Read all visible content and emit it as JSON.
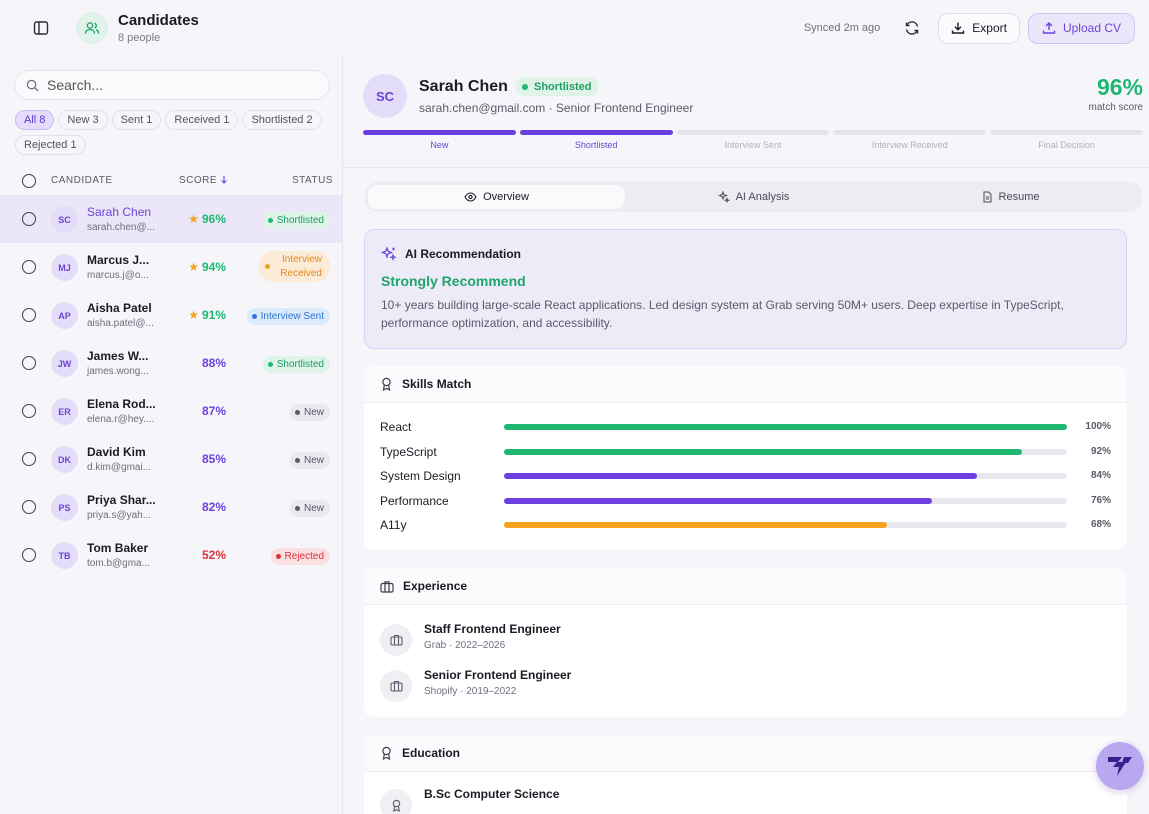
{
  "header": {
    "title": "Candidates",
    "subtitle": "8 people",
    "synced": "Synced 2m ago",
    "export_label": "Export",
    "upload_label": "Upload CV"
  },
  "search": {
    "placeholder": "Search..."
  },
  "filters": [
    {
      "label": "All 8",
      "active": true
    },
    {
      "label": "New 3",
      "active": false
    },
    {
      "label": "Sent 1",
      "active": false
    },
    {
      "label": "Received 1",
      "active": false
    },
    {
      "label": "Shortlisted 2",
      "active": false
    },
    {
      "label": "Rejected 1",
      "active": false
    }
  ],
  "list_headers": {
    "candidate": "CANDIDATE",
    "score": "SCORE",
    "status": "STATUS"
  },
  "candidates": [
    {
      "initials": "SC",
      "name": "Sarah Chen",
      "email": "sarah.chen@...",
      "score": "96%",
      "score_color": "#1fb872",
      "star": true,
      "status": "Shortlisted",
      "status_key": "shortlisted",
      "selected": true
    },
    {
      "initials": "MJ",
      "name": "Marcus J...",
      "email": "marcus.j@o...",
      "score": "94%",
      "score_color": "#1fb872",
      "star": true,
      "status": "Interview Received",
      "status_key": "interview-received",
      "selected": false
    },
    {
      "initials": "AP",
      "name": "Aisha Patel",
      "email": "aisha.patel@...",
      "score": "91%",
      "score_color": "#1fb872",
      "star": true,
      "status": "Interview Sent",
      "status_key": "interview-sent",
      "selected": false
    },
    {
      "initials": "JW",
      "name": "James W...",
      "email": "james.wong...",
      "score": "88%",
      "score_color": "#6b3fe0",
      "star": false,
      "status": "Shortlisted",
      "status_key": "shortlisted",
      "selected": false
    },
    {
      "initials": "ER",
      "name": "Elena Rod...",
      "email": "elena.r@hey....",
      "score": "87%",
      "score_color": "#6b3fe0",
      "star": false,
      "status": "New",
      "status_key": "new",
      "selected": false
    },
    {
      "initials": "DK",
      "name": "David Kim",
      "email": "d.kim@gmai...",
      "score": "85%",
      "score_color": "#6b3fe0",
      "star": false,
      "status": "New",
      "status_key": "new",
      "selected": false
    },
    {
      "initials": "PS",
      "name": "Priya Shar...",
      "email": "priya.s@yah...",
      "score": "82%",
      "score_color": "#6b3fe0",
      "star": false,
      "status": "New",
      "status_key": "new",
      "selected": false
    },
    {
      "initials": "TB",
      "name": "Tom Baker",
      "email": "tom.b@gma...",
      "score": "52%",
      "score_color": "#d8333f",
      "star": false,
      "status": "Rejected",
      "status_key": "rejected",
      "selected": false
    }
  ],
  "profile": {
    "initials": "SC",
    "name": "Sarah Chen",
    "status": "Shortlisted",
    "subtitle": "sarah.chen@gmail.com · Senior Frontend Engineer",
    "match_value": "96%",
    "match_label": "match score"
  },
  "stages": [
    {
      "label": "New",
      "done": true
    },
    {
      "label": "Shortlisted",
      "done": true
    },
    {
      "label": "Interview Sent",
      "done": false
    },
    {
      "label": "Interview Received",
      "done": false
    },
    {
      "label": "Final Decision",
      "done": false
    }
  ],
  "tabs": [
    {
      "label": "Overview",
      "icon": "eye-icon",
      "active": true
    },
    {
      "label": "AI Analysis",
      "icon": "sparkles-icon",
      "active": false
    },
    {
      "label": "Resume",
      "icon": "document-icon",
      "active": false
    }
  ],
  "ai": {
    "title": "AI Recommendation",
    "verdict": "Strongly Recommend",
    "description": "10+ years building large-scale React applications. Led design system at Grab serving 50M+ users. Deep expertise in TypeScript, performance optimization, and accessibility."
  },
  "skills": {
    "title": "Skills Match",
    "items": [
      {
        "name": "React",
        "value": 100,
        "label": "100%",
        "color": "#1fb872"
      },
      {
        "name": "TypeScript",
        "value": 92,
        "label": "92%",
        "color": "#1fb872"
      },
      {
        "name": "System Design",
        "value": 84,
        "label": "84%",
        "color": "#6b3fe0"
      },
      {
        "name": "Performance",
        "value": 76,
        "label": "76%",
        "color": "#6b3fe0"
      },
      {
        "name": "A11y",
        "value": 68,
        "label": "68%",
        "color": "#f5a21d"
      }
    ]
  },
  "experience": {
    "title": "Experience",
    "items": [
      {
        "role": "Staff Frontend Engineer",
        "meta": "Grab · 2022–2026"
      },
      {
        "role": "Senior Frontend Engineer",
        "meta": "Shopify · 2019–2022"
      }
    ]
  },
  "education": {
    "title": "Education",
    "items": [
      {
        "degree": "B.Sc Computer Science"
      }
    ]
  }
}
